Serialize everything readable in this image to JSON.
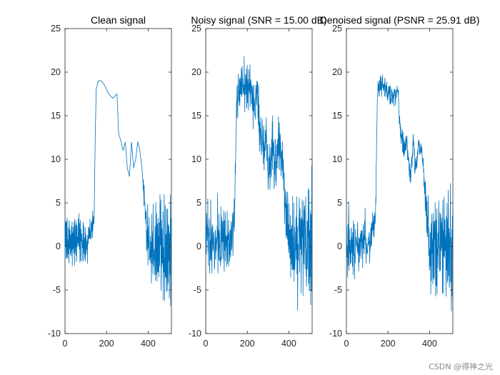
{
  "figure": {
    "watermark": "CSDN @得神之光",
    "colors": {
      "line": "#0072BD",
      "axes": "#262626",
      "background": "#ffffff"
    }
  },
  "chart_data": [
    {
      "type": "line",
      "title": "Clean signal",
      "xlim": [
        0,
        512
      ],
      "ylim": [
        -10,
        25
      ],
      "xticks": [
        0,
        200,
        400
      ],
      "yticks": [
        -10,
        -5,
        0,
        5,
        10,
        15,
        20,
        25
      ],
      "noise": 0,
      "description": "smooth plateau with oscillating flanks",
      "anchors": [
        [
          0,
          1
        ],
        [
          40,
          0
        ],
        [
          80,
          1
        ],
        [
          110,
          0
        ],
        [
          130,
          2
        ],
        [
          140,
          3
        ],
        [
          145,
          12
        ],
        [
          150,
          18
        ],
        [
          160,
          19
        ],
        [
          175,
          19
        ],
        [
          190,
          18.5
        ],
        [
          210,
          17.5
        ],
        [
          230,
          17
        ],
        [
          250,
          17.5
        ],
        [
          258,
          13
        ],
        [
          270,
          12
        ],
        [
          280,
          11
        ],
        [
          290,
          12
        ],
        [
          300,
          9
        ],
        [
          310,
          8
        ],
        [
          320,
          12
        ],
        [
          330,
          9
        ],
        [
          340,
          10
        ],
        [
          350,
          12
        ],
        [
          360,
          11
        ],
        [
          370,
          9
        ],
        [
          380,
          6
        ],
        [
          400,
          0
        ],
        [
          440,
          0
        ],
        [
          480,
          0
        ],
        [
          512,
          0
        ]
      ],
      "osc": [
        [
          0,
          3
        ],
        [
          130,
          1.8
        ],
        [
          145,
          0
        ],
        [
          370,
          0
        ],
        [
          390,
          3.5
        ],
        [
          512,
          6
        ]
      ]
    },
    {
      "type": "line",
      "title": "Noisy signal (SNR = 15.00 dB)",
      "xlim": [
        0,
        512
      ],
      "ylim": [
        -10,
        25
      ],
      "xticks": [
        0,
        200,
        400
      ],
      "yticks": [
        -10,
        -5,
        0,
        5,
        10,
        15,
        20,
        25
      ],
      "noise": 2.2,
      "anchors": [
        [
          0,
          1
        ],
        [
          40,
          0
        ],
        [
          80,
          1
        ],
        [
          110,
          0
        ],
        [
          130,
          2
        ],
        [
          140,
          3
        ],
        [
          145,
          12
        ],
        [
          150,
          18
        ],
        [
          160,
          19
        ],
        [
          175,
          19
        ],
        [
          190,
          18.5
        ],
        [
          210,
          17.5
        ],
        [
          230,
          17
        ],
        [
          250,
          17.5
        ],
        [
          258,
          13
        ],
        [
          270,
          12
        ],
        [
          280,
          11
        ],
        [
          290,
          12
        ],
        [
          300,
          9
        ],
        [
          310,
          8
        ],
        [
          320,
          12
        ],
        [
          330,
          9
        ],
        [
          340,
          10
        ],
        [
          350,
          12
        ],
        [
          360,
          11
        ],
        [
          370,
          9
        ],
        [
          380,
          6
        ],
        [
          400,
          0
        ],
        [
          440,
          0
        ],
        [
          480,
          0
        ],
        [
          512,
          0
        ]
      ],
      "osc": [
        [
          0,
          3
        ],
        [
          130,
          1.8
        ],
        [
          145,
          0
        ],
        [
          370,
          0
        ],
        [
          390,
          3.5
        ],
        [
          512,
          6
        ]
      ]
    },
    {
      "type": "line",
      "title": "Denoised signal (PSNR = 25.91 dB)",
      "xlim": [
        0,
        512
      ],
      "ylim": [
        -10,
        25
      ],
      "xticks": [
        0,
        200,
        400
      ],
      "yticks": [
        -10,
        -5,
        0,
        5,
        10,
        15,
        20,
        25
      ],
      "noise": 0.9,
      "anchors": [
        [
          0,
          1
        ],
        [
          40,
          0
        ],
        [
          80,
          1
        ],
        [
          110,
          0
        ],
        [
          130,
          2
        ],
        [
          140,
          3
        ],
        [
          145,
          12
        ],
        [
          150,
          18
        ],
        [
          160,
          18.5
        ],
        [
          175,
          18.5
        ],
        [
          190,
          18
        ],
        [
          210,
          17.5
        ],
        [
          230,
          17
        ],
        [
          250,
          17.5
        ],
        [
          258,
          13
        ],
        [
          270,
          12
        ],
        [
          280,
          11
        ],
        [
          290,
          12
        ],
        [
          300,
          9
        ],
        [
          310,
          8
        ],
        [
          320,
          12
        ],
        [
          330,
          9
        ],
        [
          340,
          10
        ],
        [
          350,
          12
        ],
        [
          360,
          11
        ],
        [
          370,
          9
        ],
        [
          380,
          6
        ],
        [
          400,
          0
        ],
        [
          440,
          0
        ],
        [
          480,
          0
        ],
        [
          512,
          0
        ]
      ],
      "osc": [
        [
          0,
          3
        ],
        [
          130,
          1.8
        ],
        [
          145,
          0
        ],
        [
          370,
          0
        ],
        [
          390,
          3.5
        ],
        [
          512,
          6
        ]
      ]
    }
  ]
}
